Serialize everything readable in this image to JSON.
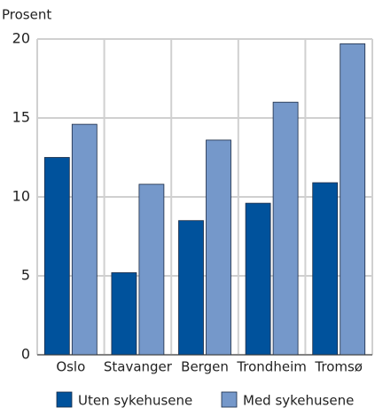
{
  "chart_data": {
    "type": "bar",
    "y_label": "Prosent",
    "categories": [
      "Oslo",
      "Stavanger",
      "Bergen",
      "Trondheim",
      "Tromsø"
    ],
    "series": [
      {
        "name": "Uten sykehusene",
        "color": "#00529c",
        "values": [
          12.5,
          5.2,
          8.5,
          9.6,
          10.9
        ]
      },
      {
        "name": "Med sykehusene",
        "color": "#7598ca",
        "values": [
          14.6,
          10.8,
          13.6,
          16.0,
          19.7
        ]
      }
    ],
    "ylim": [
      0,
      20
    ],
    "yticks": [
      0,
      5,
      10,
      15,
      20
    ],
    "grid": true,
    "legend": "bottom"
  }
}
